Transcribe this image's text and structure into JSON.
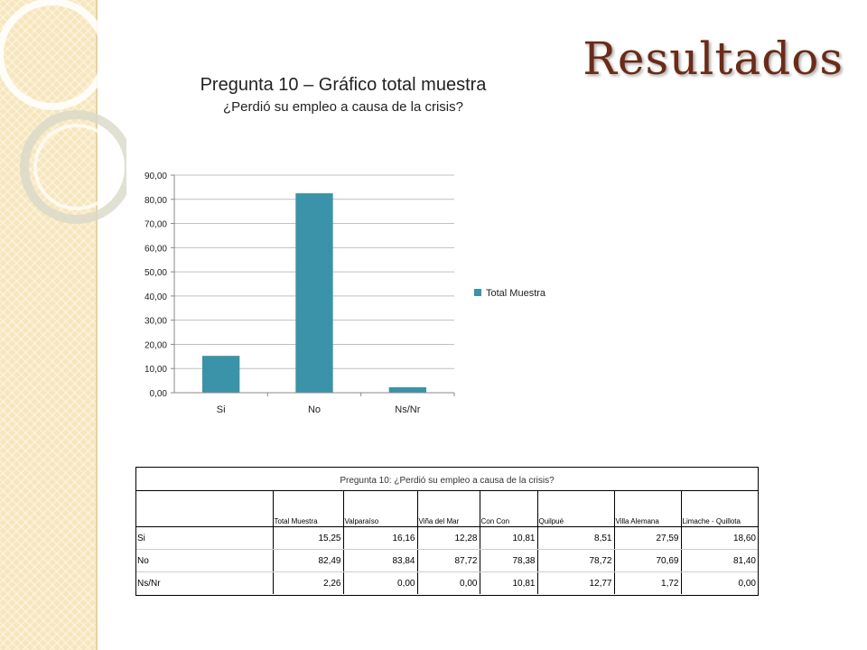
{
  "slide": {
    "title": "Resultados",
    "accent_color": "#6b2b16",
    "strip_color": "#f7e6bc"
  },
  "chart_data": {
    "type": "bar",
    "title": "Pregunta 10 – Gráfico total muestra",
    "subtitle": "¿Perdió su empleo a causa de la crisis?",
    "categories": [
      "Si",
      "No",
      "Ns/Nr"
    ],
    "series": [
      {
        "name": "Total Muestra",
        "values": [
          15.25,
          82.49,
          2.26
        ],
        "color": "#3a93a9"
      }
    ],
    "ylim": [
      0,
      90
    ],
    "yticks": [
      "0,00",
      "10,00",
      "20,00",
      "30,00",
      "40,00",
      "50,00",
      "60,00",
      "70,00",
      "80,00",
      "90,00"
    ],
    "grid": true,
    "legend_position": "right"
  },
  "table": {
    "caption": "Pregunta 10: ¿Perdió su empleo a causa de la crisis?",
    "columns": [
      "",
      "Total Muestra",
      "Valparaíso",
      "Viña del Mar",
      "Con Con",
      "Quilpué",
      "Villa Alemana",
      "Limache - Quillota"
    ],
    "rows": [
      [
        "Si",
        "15,25",
        "16,16",
        "12,28",
        "10,81",
        "8,51",
        "27,59",
        "18,60"
      ],
      [
        "No",
        "82,49",
        "83,84",
        "87,72",
        "78,38",
        "78,72",
        "70,69",
        "81,40"
      ],
      [
        "Ns/Nr",
        "2,26",
        "0,00",
        "0,00",
        "10,81",
        "12,77",
        "1,72",
        "0,00"
      ]
    ]
  }
}
